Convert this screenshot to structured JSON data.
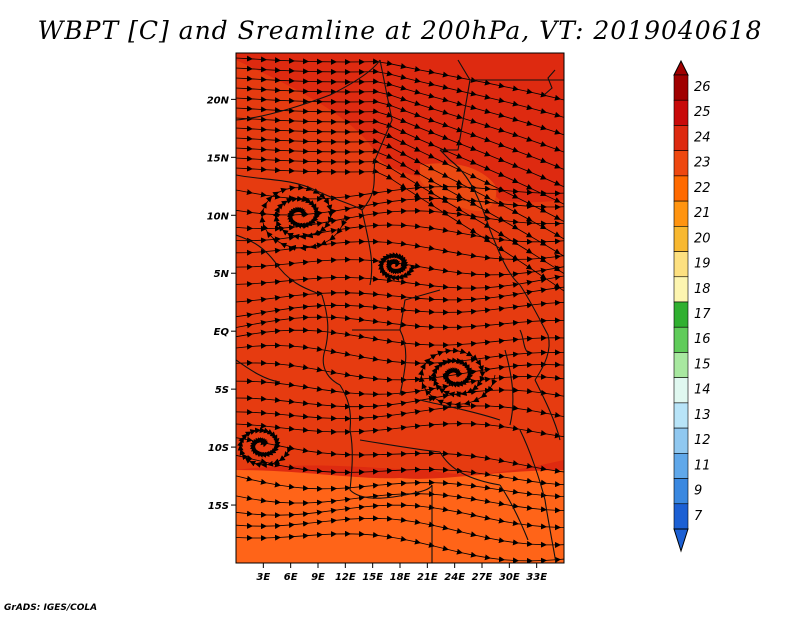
{
  "title": "WBPT [C] and Sreamline at 200hPa, VT: 2019040618",
  "credit": "GrADS: IGES/COLA",
  "map": {
    "lon_range": [
      0,
      36
    ],
    "lat_range": [
      -20,
      24
    ],
    "x_ticks": [
      "3E",
      "6E",
      "9E",
      "12E",
      "15E",
      "18E",
      "21E",
      "24E",
      "27E",
      "30E",
      "33E"
    ],
    "x_tick_values": [
      3,
      6,
      9,
      12,
      15,
      18,
      21,
      24,
      27,
      30,
      33
    ],
    "y_ticks": [
      "20N",
      "15N",
      "10N",
      "5N",
      "EQ",
      "5S",
      "10S",
      "15S"
    ],
    "y_tick_values": [
      20,
      15,
      10,
      5,
      0,
      -5,
      -10,
      -15
    ],
    "fill_colors": {
      "dominant": "#de2a10",
      "warm": "#e63b10",
      "south": "#ff6418",
      "north_patch": "#ec4a12"
    }
  },
  "colorbar": {
    "labels": [
      "26",
      "25",
      "24",
      "23",
      "22",
      "21",
      "20",
      "19",
      "18",
      "17",
      "16",
      "15",
      "14",
      "13",
      "12",
      "11",
      "9",
      "7"
    ],
    "colors": [
      "#a00000",
      "#c80a0a",
      "#dd2a10",
      "#ee4810",
      "#ff6a00",
      "#ff9410",
      "#f8b830",
      "#fde080",
      "#fdf5b0",
      "#30b030",
      "#60cc5a",
      "#a8e8a0",
      "#e0f8f0",
      "#b8e4f8",
      "#90c8f0",
      "#60a8ea",
      "#3a88e0",
      "#1c60d4"
    ]
  }
}
